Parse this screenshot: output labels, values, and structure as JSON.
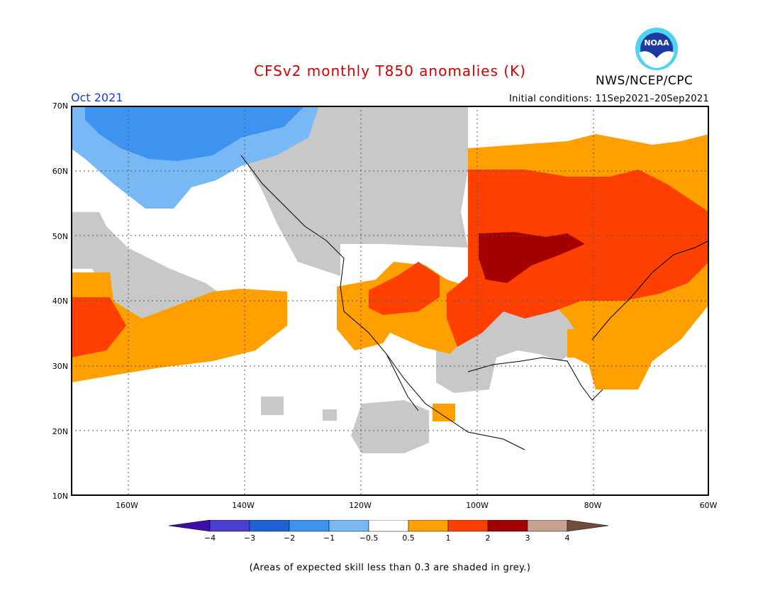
{
  "title": "CFSv2 monthly T850 anomalies (K)",
  "credit": "NWS/NCEP/CPC",
  "logo_text": "NOAA",
  "period": "Oct 2021",
  "initial_conditions": "Initial conditions: 11Sep2021–20Sep2021",
  "lat_labels": [
    "70N",
    "60N",
    "50N",
    "40N",
    "30N",
    "20N",
    "10N"
  ],
  "lon_labels": [
    "160W",
    "140W",
    "120W",
    "100W",
    "80W",
    "60W"
  ],
  "colorbar": {
    "ticks": [
      "−4",
      "−3",
      "−2",
      "−1",
      "−0.5",
      "0.5",
      "1",
      "2",
      "3",
      "4"
    ],
    "colors": {
      "lt_minus4": "#3e0fa8",
      "m4_m3": "#4b3fd0",
      "m3_m2": "#1f62d8",
      "m2_m1": "#3e93f0",
      "m1_m05": "#78b8f5",
      "neutral": "#ffffff",
      "p05_p1": "#ffa000",
      "p1_p2": "#ff4000",
      "p2_p3": "#a50000",
      "p3_p4": "#c8a090",
      "gt_4": "#704c3c"
    }
  },
  "low_skill_color": "#c8c8c8",
  "footnote": "(Areas of expected skill less than 0.3 are shaded in grey.)"
}
